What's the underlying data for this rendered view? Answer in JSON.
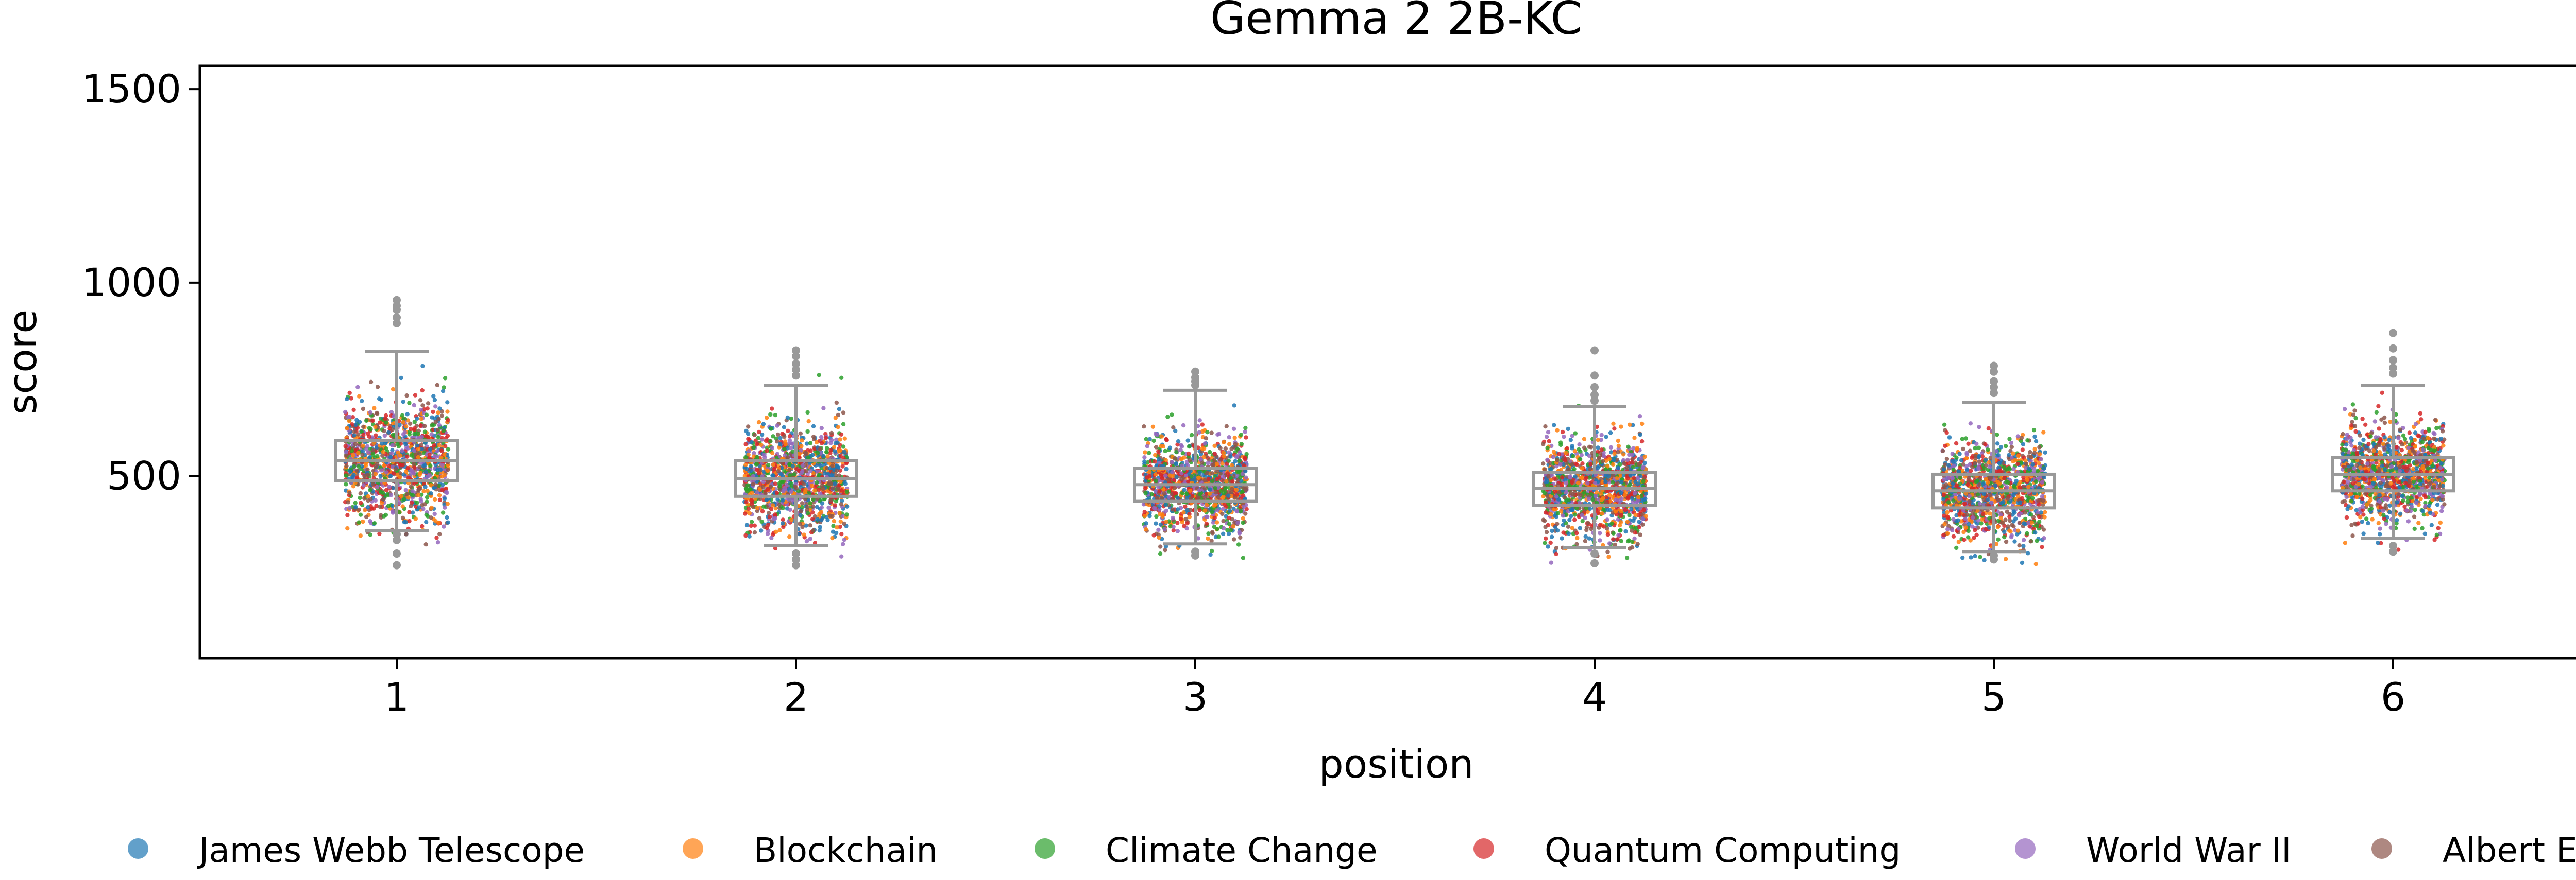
{
  "chart_data": {
    "type": "box+strip",
    "title": "Gemma 2 2B-KC",
    "xlabel": "position",
    "ylabel": "score",
    "ylim": [
      30,
      1560
    ],
    "yticks": [
      500,
      1000,
      1500
    ],
    "categories": [
      "1",
      "2",
      "3",
      "4",
      "5",
      "6"
    ],
    "box_color": "#999999",
    "boxes": [
      {
        "q1": 488,
        "median": 540,
        "q3": 592,
        "whisker_low": 360,
        "whisker_high": 823,
        "outliers": [
          955,
          940,
          930,
          910,
          895,
          350,
          335,
          300,
          270
        ]
      },
      {
        "q1": 448,
        "median": 494,
        "q3": 540,
        "whisker_low": 320,
        "whisker_high": 735,
        "outliers": [
          825,
          810,
          790,
          775,
          760,
          300,
          285,
          270
        ]
      },
      {
        "q1": 435,
        "median": 478,
        "q3": 520,
        "whisker_low": 325,
        "whisker_high": 722,
        "outliers": [
          770,
          755,
          745,
          735,
          305,
          295
        ]
      },
      {
        "q1": 425,
        "median": 468,
        "q3": 510,
        "whisker_low": 315,
        "whisker_high": 680,
        "outliers": [
          825,
          760,
          730,
          710,
          695,
          300,
          275
        ]
      },
      {
        "q1": 418,
        "median": 462,
        "q3": 505,
        "whisker_low": 305,
        "whisker_high": 690,
        "outliers": [
          785,
          770,
          745,
          730,
          715,
          295,
          285
        ]
      },
      {
        "q1": 462,
        "median": 505,
        "q3": 548,
        "whisker_low": 340,
        "whisker_high": 735,
        "outliers": [
          870,
          830,
          800,
          780,
          765,
          320,
          305
        ]
      }
    ],
    "series": [
      {
        "name": "James Webb Telescope",
        "color": "#1f77b4"
      },
      {
        "name": "Blockchain",
        "color": "#ff7f0e"
      },
      {
        "name": "Climate Change",
        "color": "#2ca02c"
      },
      {
        "name": "Quantum Computing",
        "color": "#d62728"
      },
      {
        "name": "World War II",
        "color": "#9467bd"
      },
      {
        "name": "Albert Einstein",
        "color": "#8c564b"
      }
    ],
    "legend_position": "bottom",
    "grid": false
  }
}
